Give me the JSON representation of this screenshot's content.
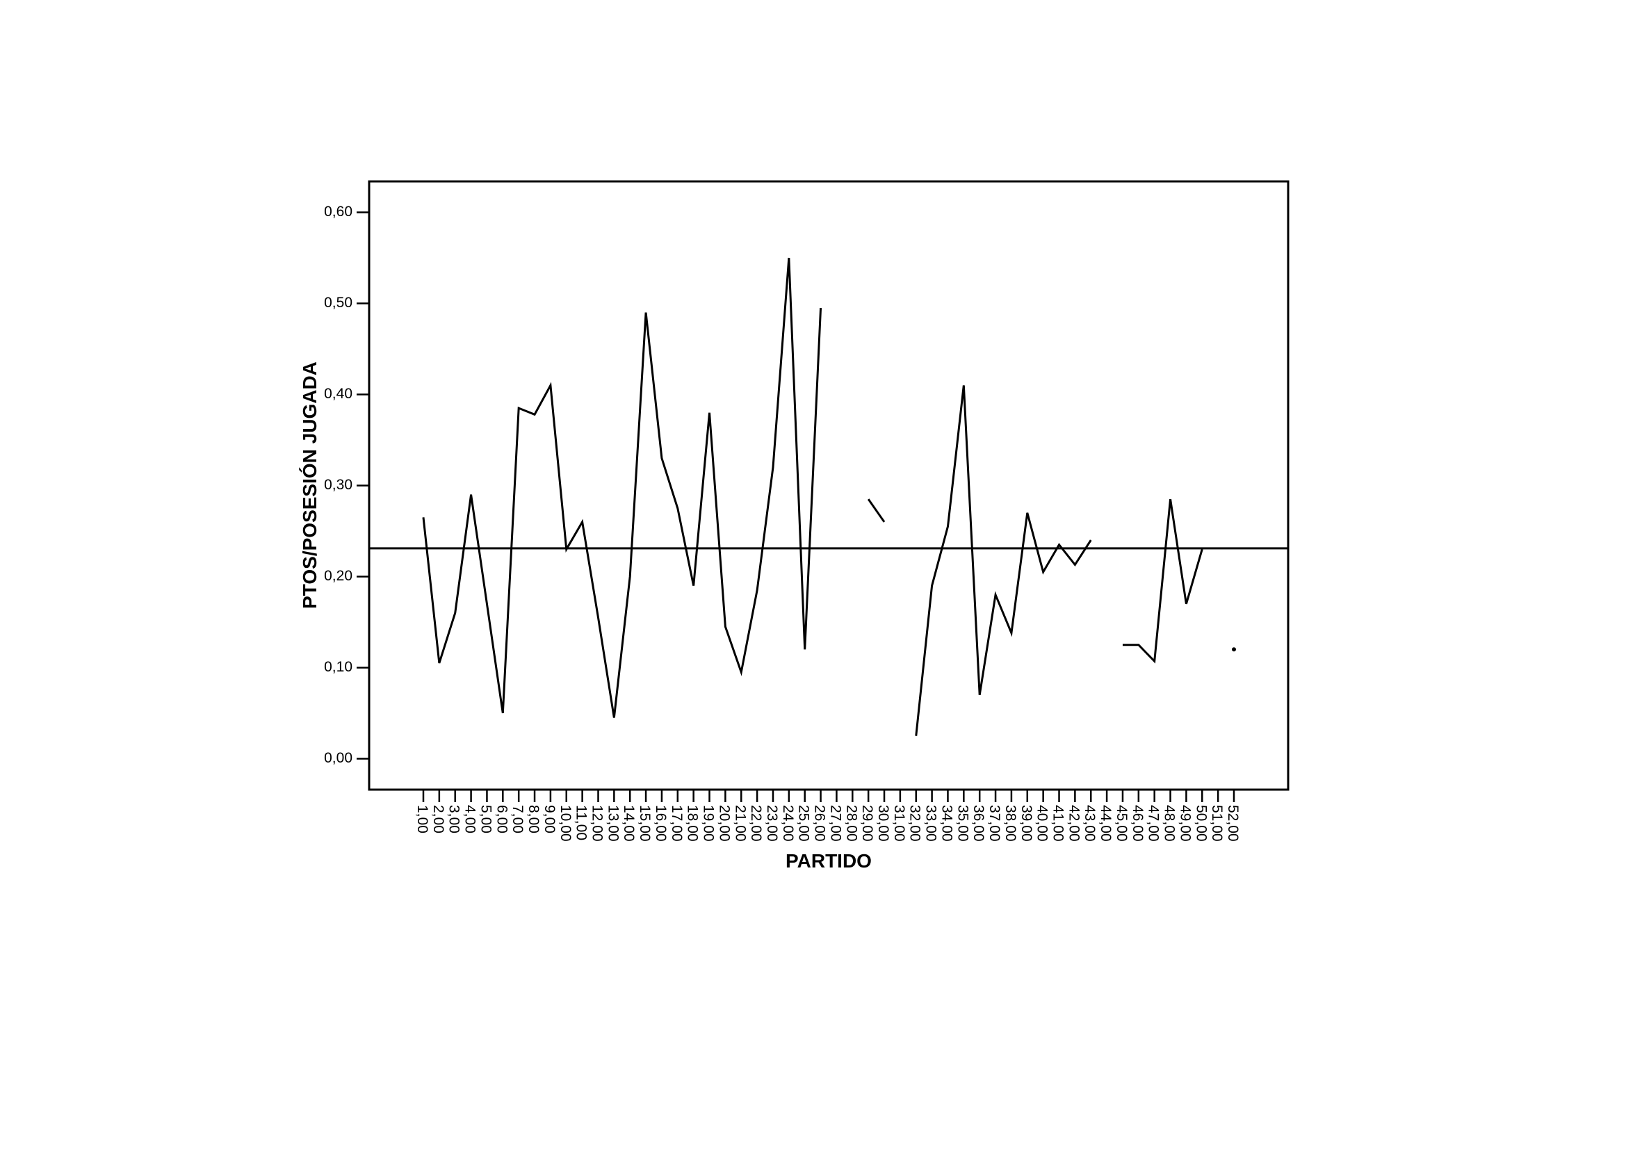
{
  "chart_data": {
    "type": "line",
    "x_label": "PARTIDO",
    "y_label": "PTOS/POSESIÓN JUGADA",
    "categories": [
      "1,00",
      "2,00",
      "3,00",
      "4,00",
      "5,00",
      "6,00",
      "7,00",
      "8,00",
      "9,00",
      "10,00",
      "11,00",
      "12,00",
      "13,00",
      "14,00",
      "15,00",
      "16,00",
      "17,00",
      "18,00",
      "19,00",
      "20,00",
      "21,00",
      "22,00",
      "23,00",
      "24,00",
      "25,00",
      "26,00",
      "27,00",
      "28,00",
      "29,00",
      "30,00",
      "31,00",
      "32,00",
      "33,00",
      "34,00",
      "35,00",
      "36,00",
      "37,00",
      "38,00",
      "39,00",
      "40,00",
      "41,00",
      "42,00",
      "43,00",
      "44,00",
      "45,00",
      "46,00",
      "47,00",
      "48,00",
      "49,00",
      "50,00",
      "51,00",
      "52,00"
    ],
    "series": [
      {
        "color": "#000000",
        "values": [
          0.265,
          0.105,
          0.16,
          0.29,
          0.17,
          0.05,
          0.385,
          0.378,
          0.41,
          0.23,
          0.26,
          0.155,
          0.045,
          0.2,
          0.49,
          0.33,
          0.275,
          0.19,
          0.38,
          0.145,
          0.095,
          0.185,
          0.32,
          0.55,
          0.12,
          0.495,
          null,
          null,
          0.285,
          0.26,
          null,
          0.025,
          0.19,
          0.255,
          0.41,
          0.07,
          0.18,
          0.138,
          0.27,
          0.205,
          0.235,
          0.213,
          0.24,
          null,
          0.125,
          0.125,
          0.107,
          0.285,
          0.17,
          0.23,
          null,
          0.12
        ]
      }
    ],
    "reference_line": 0.231,
    "ylim": [
      -0.034,
      0.634
    ],
    "yticks": [
      {
        "value": 0,
        "label": "0,00"
      },
      {
        "value": 0.1,
        "label": "0,10"
      },
      {
        "value": 0.2,
        "label": "0,20"
      },
      {
        "value": 0.3,
        "label": "0,30"
      },
      {
        "value": 0.4,
        "label": "0,40"
      },
      {
        "value": 0.5,
        "label": "0,50"
      },
      {
        "value": 0.6,
        "label": "0,60"
      }
    ],
    "grid": false
  }
}
